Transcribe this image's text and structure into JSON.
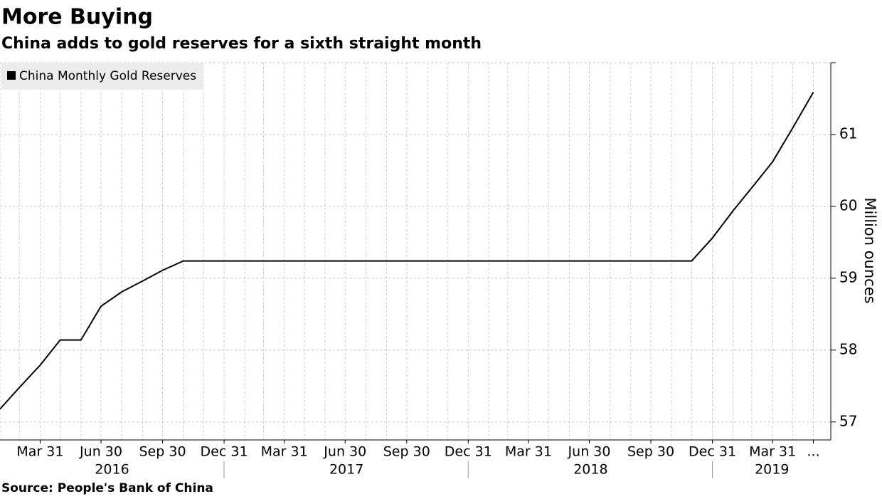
{
  "chart_data": {
    "type": "line",
    "title": "More Buying",
    "subtitle": "China adds to gold reserves for a sixth straight month",
    "source": "Source: People's Bank of China",
    "y_label": "Million ounces",
    "x": [
      "2016-01-31",
      "2016-02-29",
      "2016-03-31",
      "2016-04-30",
      "2016-05-31",
      "2016-06-30",
      "2016-07-31",
      "2016-08-31",
      "2016-09-30",
      "2016-10-31",
      "2016-11-30",
      "2016-12-31",
      "2017-01-31",
      "2017-02-28",
      "2017-03-31",
      "2017-04-30",
      "2017-05-31",
      "2017-06-30",
      "2017-07-31",
      "2017-08-31",
      "2017-09-30",
      "2017-10-31",
      "2017-11-30",
      "2017-12-31",
      "2018-01-31",
      "2018-02-28",
      "2018-03-31",
      "2018-04-30",
      "2018-05-31",
      "2018-06-30",
      "2018-07-31",
      "2018-08-31",
      "2018-09-30",
      "2018-10-31",
      "2018-11-30",
      "2018-12-31",
      "2019-01-31",
      "2019-02-28",
      "2019-03-31",
      "2019-04-30",
      "2019-05-31"
    ],
    "series": [
      {
        "name": "China Monthly Gold Reserves",
        "color": "#000000",
        "values": [
          57.18,
          57.48,
          57.79,
          58.14,
          58.14,
          58.61,
          58.81,
          58.96,
          59.11,
          59.24,
          59.24,
          59.24,
          59.24,
          59.24,
          59.24,
          59.24,
          59.24,
          59.24,
          59.24,
          59.24,
          59.24,
          59.24,
          59.24,
          59.24,
          59.24,
          59.24,
          59.24,
          59.24,
          59.24,
          59.24,
          59.24,
          59.24,
          59.24,
          59.24,
          59.24,
          59.56,
          59.94,
          60.26,
          60.62,
          61.09,
          61.59
        ]
      }
    ],
    "xlim": [
      "2016-01-31",
      "2019-06-26"
    ],
    "xticks": [
      {
        "value": "2016-03-31",
        "label": "Mar 31"
      },
      {
        "value": "2016-06-30",
        "label": "Jun 30"
      },
      {
        "value": "2016-09-30",
        "label": "Sep 30"
      },
      {
        "value": "2016-12-31",
        "label": "Dec 31"
      },
      {
        "value": "2017-03-31",
        "label": "Mar 31"
      },
      {
        "value": "2017-06-30",
        "label": "Jun 30"
      },
      {
        "value": "2017-09-30",
        "label": "Sep 30"
      },
      {
        "value": "2017-12-31",
        "label": "Dec 31"
      },
      {
        "value": "2018-03-31",
        "label": "Mar 31"
      },
      {
        "value": "2018-06-30",
        "label": "Jun 30"
      },
      {
        "value": "2018-09-30",
        "label": "Sep 30"
      },
      {
        "value": "2018-12-31",
        "label": "Dec 31"
      },
      {
        "value": "2019-03-31",
        "label": "Mar 31"
      },
      {
        "value": "2019-05-31",
        "label": "..."
      }
    ],
    "x_groups": [
      "2016",
      "2017",
      "2018",
      "2019"
    ],
    "ylim": [
      56.75,
      62.0
    ],
    "yticks": [
      57,
      58,
      59,
      60,
      61
    ],
    "grid": true,
    "legend": "top-left"
  }
}
